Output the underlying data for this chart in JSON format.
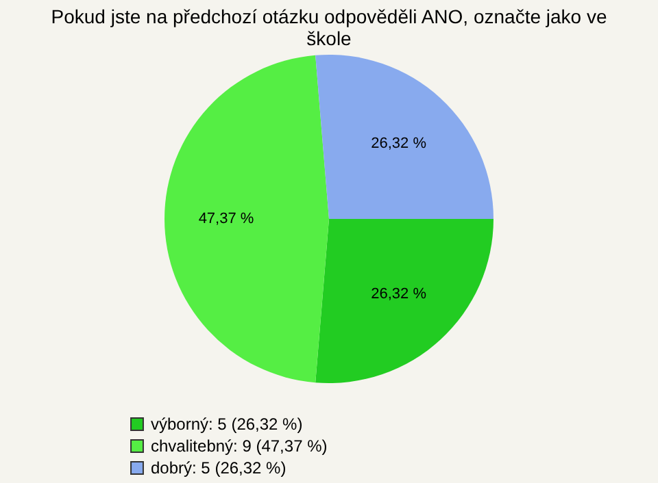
{
  "chart_data": {
    "type": "pie",
    "title": [
      "Pokud jste na předchozí otázku odpověděli ANO, označte jako ve",
      "škole"
    ],
    "categories": [
      "výborný: 5 (26,32 %)",
      "chvalitebný: 9 (47,37 %)",
      "dobrý: 5 (26,32 %)"
    ],
    "values": [
      26.32,
      47.37,
      26.32
    ],
    "value_labels": [
      "26,32 %",
      "47,37 %",
      "26,32 %"
    ],
    "colors": [
      "#22cc22",
      "#55ee44",
      "#88aaee"
    ],
    "legend": "bottom left"
  }
}
